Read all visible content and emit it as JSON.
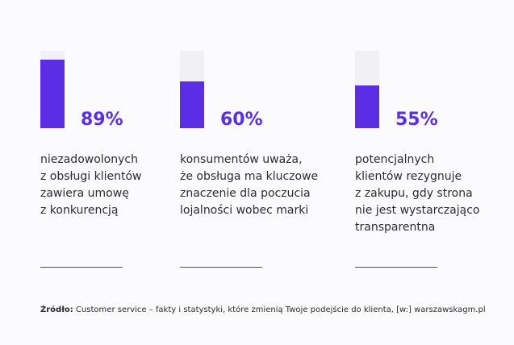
{
  "colors": {
    "accent": "#5b2ee6",
    "track": "#f1f1f5",
    "text": "#2b2b33"
  },
  "chart_data": {
    "type": "bar",
    "ylim": [
      0,
      100
    ],
    "categories": [
      "89%",
      "60%",
      "55%"
    ],
    "values": [
      89,
      60,
      55
    ],
    "stats": [
      {
        "value": 89,
        "label": "89%",
        "lines": [
          "niezadowolonych",
          "z obsługi klientów",
          "zawiera umowę",
          "z konkurencją"
        ]
      },
      {
        "value": 60,
        "label": "60%",
        "lines": [
          "konsumentów uważa,",
          "że obsługa ma kluczowe",
          "znaczenie dla poczucia",
          "lojalności wobec marki"
        ]
      },
      {
        "value": 55,
        "label": "55%",
        "lines": [
          "potencjalnych",
          "klientów rezygnuje",
          "z zakupu, gdy strona",
          "nie jest wystarczająco",
          "transparentna"
        ]
      }
    ]
  },
  "source": {
    "label": "Źródło:",
    "text": " Customer service – fakty i statystyki, które zmienią Twoje podejście do klienta, [w:] warszawskagm.pl"
  }
}
